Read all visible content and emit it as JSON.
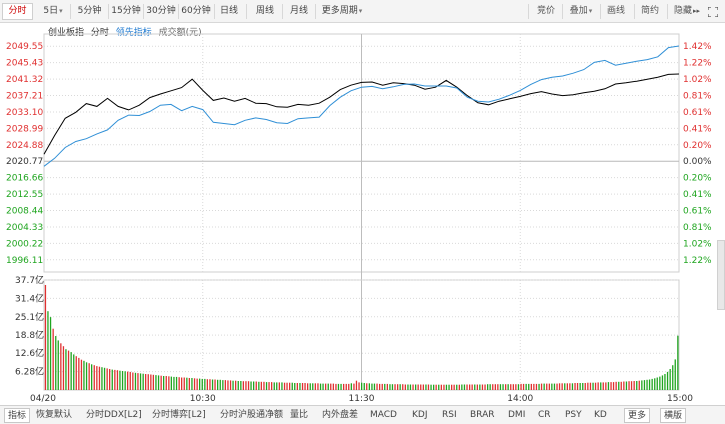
{
  "toolbar": {
    "items": [
      {
        "label": "分时",
        "active": true
      },
      {
        "label": "5日",
        "dropdown": true
      },
      {
        "label": "5分钟"
      },
      {
        "label": "15分钟"
      },
      {
        "label": "30分钟"
      },
      {
        "label": "60分钟"
      },
      {
        "label": "日线"
      },
      {
        "label": "周线"
      },
      {
        "label": "月线"
      },
      {
        "label": "更多周期",
        "dropdown": true
      }
    ],
    "right_items": [
      {
        "label": "竞价"
      },
      {
        "label": "叠加",
        "dropdown": true
      },
      {
        "label": "画线"
      },
      {
        "label": "简约"
      },
      {
        "label": "隐藏"
      }
    ],
    "right_icons": [
      "collapse-arrows-icon",
      "fullscreen-icon"
    ]
  },
  "legend": {
    "title": "创业板指",
    "fenshi": "分时",
    "lead": "领先指标",
    "volume": "成交额(元)"
  },
  "colors": {
    "price_line": "#000000",
    "lead_line": "#2f8fd6",
    "up": "#e03030",
    "down": "#1fa51f",
    "neutral": "#333333",
    "grid": "#d9d9d9"
  },
  "y_axis_left": [
    "2049.55",
    "2045.43",
    "2041.32",
    "2037.21",
    "2033.10",
    "2028.99",
    "2024.88",
    "2020.77",
    "2016.66",
    "2012.55",
    "2008.44",
    "2004.33",
    "2000.22",
    "1996.11"
  ],
  "y_axis_right": [
    "1.42%",
    "1.22%",
    "1.02%",
    "0.81%",
    "0.61%",
    "0.41%",
    "0.20%",
    "0.00%",
    "0.20%",
    "0.41%",
    "0.61%",
    "0.81%",
    "1.02%",
    "1.22%"
  ],
  "volume_axis": [
    "37.7亿",
    "31.4亿",
    "25.1亿",
    "18.8亿",
    "12.6亿",
    "6.28亿"
  ],
  "x_axis": [
    "04/20",
    "10:30",
    "11:30",
    "14:00",
    "15:00"
  ],
  "chart_data": {
    "type": "line",
    "prev_close": 2020.77,
    "ylim": [
      1994.06,
      2051.6
    ],
    "x_range": [
      0,
      240
    ],
    "series": [
      {
        "name": "分时",
        "points": [
          [
            0,
            2022.5
          ],
          [
            4,
            2027.2
          ],
          [
            8,
            2031.5
          ],
          [
            12,
            2033
          ],
          [
            16,
            2035.2
          ],
          [
            20,
            2034.5
          ],
          [
            24,
            2036.5
          ],
          [
            28,
            2034.5
          ],
          [
            32,
            2033.6
          ],
          [
            36,
            2034.8
          ],
          [
            40,
            2036.7
          ],
          [
            44,
            2037.6
          ],
          [
            48,
            2038.4
          ],
          [
            52,
            2039.2
          ],
          [
            56,
            2041.3
          ],
          [
            60,
            2038.5
          ],
          [
            64,
            2036
          ],
          [
            68,
            2036.6
          ],
          [
            72,
            2035.8
          ],
          [
            76,
            2036.5
          ],
          [
            80,
            2035.3
          ],
          [
            84,
            2035.2
          ],
          [
            88,
            2034.4
          ],
          [
            92,
            2034.3
          ],
          [
            96,
            2035
          ],
          [
            100,
            2034.8
          ],
          [
            104,
            2035.3
          ],
          [
            108,
            2036.8
          ],
          [
            112,
            2038.7
          ],
          [
            116,
            2039.8
          ],
          [
            120,
            2040.5
          ],
          [
            124,
            2040.6
          ],
          [
            128,
            2039.8
          ],
          [
            132,
            2040.4
          ],
          [
            136,
            2040.2
          ],
          [
            140,
            2039.8
          ],
          [
            144,
            2038.8
          ],
          [
            148,
            2039.3
          ],
          [
            152,
            2041
          ],
          [
            156,
            2039.3
          ],
          [
            160,
            2037.2
          ],
          [
            164,
            2035.4
          ],
          [
            168,
            2034.9
          ],
          [
            172,
            2035.8
          ],
          [
            176,
            2036.4
          ],
          [
            180,
            2037
          ],
          [
            184,
            2037.7
          ],
          [
            188,
            2038.2
          ],
          [
            192,
            2037.6
          ],
          [
            196,
            2037.2
          ],
          [
            200,
            2037.4
          ],
          [
            204,
            2037.9
          ],
          [
            208,
            2038.3
          ],
          [
            212,
            2038.9
          ],
          [
            216,
            2040.1
          ],
          [
            220,
            2040.4
          ],
          [
            224,
            2040.8
          ],
          [
            228,
            2041.3
          ],
          [
            232,
            2041.8
          ],
          [
            236,
            2042.5
          ],
          [
            240,
            2042.6
          ]
        ]
      },
      {
        "name": "领先指标",
        "points": [
          [
            0,
            2019.5
          ],
          [
            4,
            2021.5
          ],
          [
            8,
            2024.2
          ],
          [
            12,
            2025.7
          ],
          [
            16,
            2026.4
          ],
          [
            20,
            2027.6
          ],
          [
            24,
            2028.6
          ],
          [
            28,
            2031
          ],
          [
            32,
            2032.3
          ],
          [
            36,
            2032.2
          ],
          [
            40,
            2033.2
          ],
          [
            44,
            2034.8
          ],
          [
            48,
            2035
          ],
          [
            52,
            2033.4
          ],
          [
            56,
            2034.5
          ],
          [
            60,
            2033.7
          ],
          [
            64,
            2030.5
          ],
          [
            68,
            2030.2
          ],
          [
            72,
            2029.9
          ],
          [
            76,
            2031
          ],
          [
            80,
            2031.6
          ],
          [
            84,
            2031.2
          ],
          [
            88,
            2030.4
          ],
          [
            92,
            2030.2
          ],
          [
            96,
            2031.4
          ],
          [
            100,
            2031.6
          ],
          [
            104,
            2031.8
          ],
          [
            108,
            2034.7
          ],
          [
            112,
            2036.8
          ],
          [
            116,
            2038.4
          ],
          [
            120,
            2039.3
          ],
          [
            124,
            2039.5
          ],
          [
            128,
            2038.9
          ],
          [
            132,
            2039.4
          ],
          [
            136,
            2040
          ],
          [
            140,
            2040.1
          ],
          [
            144,
            2039.6
          ],
          [
            148,
            2039.6
          ],
          [
            152,
            2039.6
          ],
          [
            156,
            2039.1
          ],
          [
            160,
            2036.8
          ],
          [
            164,
            2035.8
          ],
          [
            168,
            2035.6
          ],
          [
            172,
            2036.3
          ],
          [
            176,
            2037.3
          ],
          [
            180,
            2038.5
          ],
          [
            184,
            2040
          ],
          [
            188,
            2041.2
          ],
          [
            192,
            2041.8
          ],
          [
            196,
            2042.1
          ],
          [
            200,
            2042.8
          ],
          [
            204,
            2043.7
          ],
          [
            208,
            2045.5
          ],
          [
            212,
            2046
          ],
          [
            216,
            2044.8
          ],
          [
            220,
            2045.3
          ],
          [
            224,
            2045.8
          ],
          [
            228,
            2046.2
          ],
          [
            232,
            2046.9
          ],
          [
            236,
            2049.2
          ],
          [
            240,
            2049.6
          ]
        ]
      }
    ],
    "volume": {
      "ylim": [
        0,
        37.7
      ],
      "unit": "亿",
      "values": [
        36,
        27,
        25,
        21,
        18.5,
        17,
        16,
        15,
        14,
        13.5,
        13,
        12.2,
        11.6,
        11,
        10.4,
        10,
        9.5,
        9.2,
        8.8,
        8.5,
        8.2,
        8,
        7.8,
        7.6,
        7.4,
        7.2,
        7,
        6.9,
        6.8,
        6.6,
        6.5,
        6.4,
        6.3,
        6.2,
        6,
        5.9,
        5.8,
        5.7,
        5.6,
        5.5,
        5.4,
        5.3,
        5.2,
        5.1,
        5,
        4.9,
        4.8,
        4.8,
        4.7,
        4.6,
        4.5,
        4.5,
        4.4,
        4.3,
        4.3,
        4.2,
        4.1,
        4.1,
        4,
        3.9,
        3.9,
        3.8,
        3.8,
        3.7,
        3.7,
        3.6,
        3.6,
        3.5,
        3.5,
        3.4,
        3.4,
        3.3,
        3.3,
        3.2,
        3.2,
        3.1,
        3.1,
        3,
        3,
        3,
        2.9,
        2.9,
        2.9,
        2.8,
        2.8,
        2.8,
        2.7,
        2.7,
        2.7,
        2.6,
        2.6,
        2.6,
        2.6,
        2.5,
        2.5,
        2.5,
        2.5,
        2.4,
        2.4,
        2.4,
        2.4,
        2.4,
        2.3,
        2.3,
        2.3,
        2.3,
        2.3,
        2.2,
        2.2,
        2.2,
        2.2,
        2.2,
        2.2,
        2.1,
        2.1,
        2.1,
        2.1,
        2.1,
        2.1,
        2.3,
        2.2,
        3.2,
        2.6,
        2.5,
        2.4,
        2.3,
        2.3,
        2.2,
        2.2,
        2.2,
        2.1,
        2.1,
        2.1,
        2.1,
        2,
        2,
        2,
        2,
        2,
        2,
        1.9,
        1.9,
        1.9,
        1.9,
        1.9,
        1.9,
        1.9,
        1.9,
        1.9,
        1.9,
        1.8,
        1.8,
        1.8,
        1.8,
        1.8,
        1.8,
        1.8,
        1.8,
        1.8,
        1.8,
        1.8,
        1.8,
        1.9,
        1.9,
        1.9,
        1.9,
        1.9,
        1.9,
        1.9,
        1.9,
        1.9,
        1.9,
        2,
        2,
        2,
        2,
        2,
        2,
        2,
        2,
        2,
        2,
        2,
        2,
        2,
        2.1,
        2.1,
        2.1,
        2.1,
        2.1,
        2.1,
        2.1,
        2.1,
        2.2,
        2.2,
        2.2,
        2.2,
        2.2,
        2.2,
        2.2,
        2.3,
        2.3,
        2.3,
        2.3,
        2.3,
        2.3,
        2.4,
        2.4,
        2.4,
        2.4,
        2.4,
        2.5,
        2.5,
        2.5,
        2.5,
        2.6,
        2.6,
        2.6,
        2.6,
        2.7,
        2.7,
        2.7,
        2.8,
        2.8,
        2.8,
        2.9,
        2.9,
        3,
        3,
        3.1,
        3.1,
        3.2,
        3.3,
        3.4,
        3.5,
        3.6,
        3.8,
        4,
        4.3,
        4.6,
        5,
        5.5,
        6.2,
        7.2,
        8.5,
        10.5,
        18.6
      ],
      "up_flags": [
        1,
        0,
        0,
        1,
        0,
        0,
        1,
        1,
        0,
        1,
        0,
        0,
        1,
        1,
        1,
        0,
        0,
        1,
        0,
        1,
        1,
        1,
        0,
        0,
        1,
        1,
        0,
        1,
        1,
        0,
        0,
        0,
        1,
        1,
        1,
        0,
        1,
        0,
        0,
        1,
        1,
        1,
        1,
        0,
        0,
        1,
        0,
        1,
        1,
        0,
        0,
        0,
        1,
        1,
        1,
        0,
        1,
        0,
        1,
        1,
        0,
        0,
        0,
        1,
        1,
        0,
        1,
        0,
        0,
        0,
        1,
        1,
        1,
        0,
        1,
        0,
        0,
        1,
        1,
        1,
        0,
        0,
        1,
        0,
        1,
        1,
        0,
        1,
        1,
        0,
        0,
        1,
        0,
        1,
        1,
        1,
        0,
        0,
        1,
        0,
        1,
        1,
        1,
        0,
        0,
        1,
        1,
        0,
        0,
        1,
        0,
        1,
        1,
        1,
        0,
        0,
        1,
        1,
        1,
        0,
        1,
        1,
        1,
        0,
        0,
        1,
        0,
        0,
        0,
        1,
        1,
        1,
        0,
        1,
        0,
        0,
        1,
        1,
        0,
        1,
        1,
        0,
        0,
        1,
        0,
        1,
        1,
        1,
        0,
        1,
        0,
        0,
        1,
        0,
        1,
        1,
        0,
        0,
        1,
        1,
        0,
        1,
        0,
        0,
        1,
        1,
        1,
        0,
        1,
        0,
        1,
        1,
        0,
        0,
        1,
        1,
        1,
        0,
        0,
        1,
        0,
        1,
        1,
        1,
        0,
        1,
        1,
        0,
        0,
        1,
        1,
        1,
        0,
        1,
        0,
        1,
        1,
        0,
        0,
        1,
        1,
        1,
        0,
        1,
        1,
        0,
        1,
        1,
        0,
        0,
        1,
        1,
        1,
        0,
        1,
        1,
        0,
        1,
        1,
        0,
        1,
        1,
        1,
        0,
        1,
        1,
        0,
        1,
        1,
        1,
        0,
        1
      ]
    }
  },
  "tabs": [
    {
      "label": "指标",
      "boxed": true
    },
    {
      "label": "恢复默认"
    },
    {
      "label": "分时DDX[L2]"
    },
    {
      "label": "分时博弈[L2]"
    },
    {
      "label": "分时沪股通净额"
    },
    {
      "label": "量比"
    },
    {
      "label": "内外盘差"
    },
    {
      "label": "MACD"
    },
    {
      "label": "KDJ"
    },
    {
      "label": "RSI"
    },
    {
      "label": "BRAR"
    },
    {
      "label": "DMI"
    },
    {
      "label": "CR"
    },
    {
      "label": "PSY"
    },
    {
      "label": "KD"
    },
    {
      "label": "更多",
      "boxed": true
    },
    {
      "label": "横版",
      "boxed": true
    }
  ]
}
